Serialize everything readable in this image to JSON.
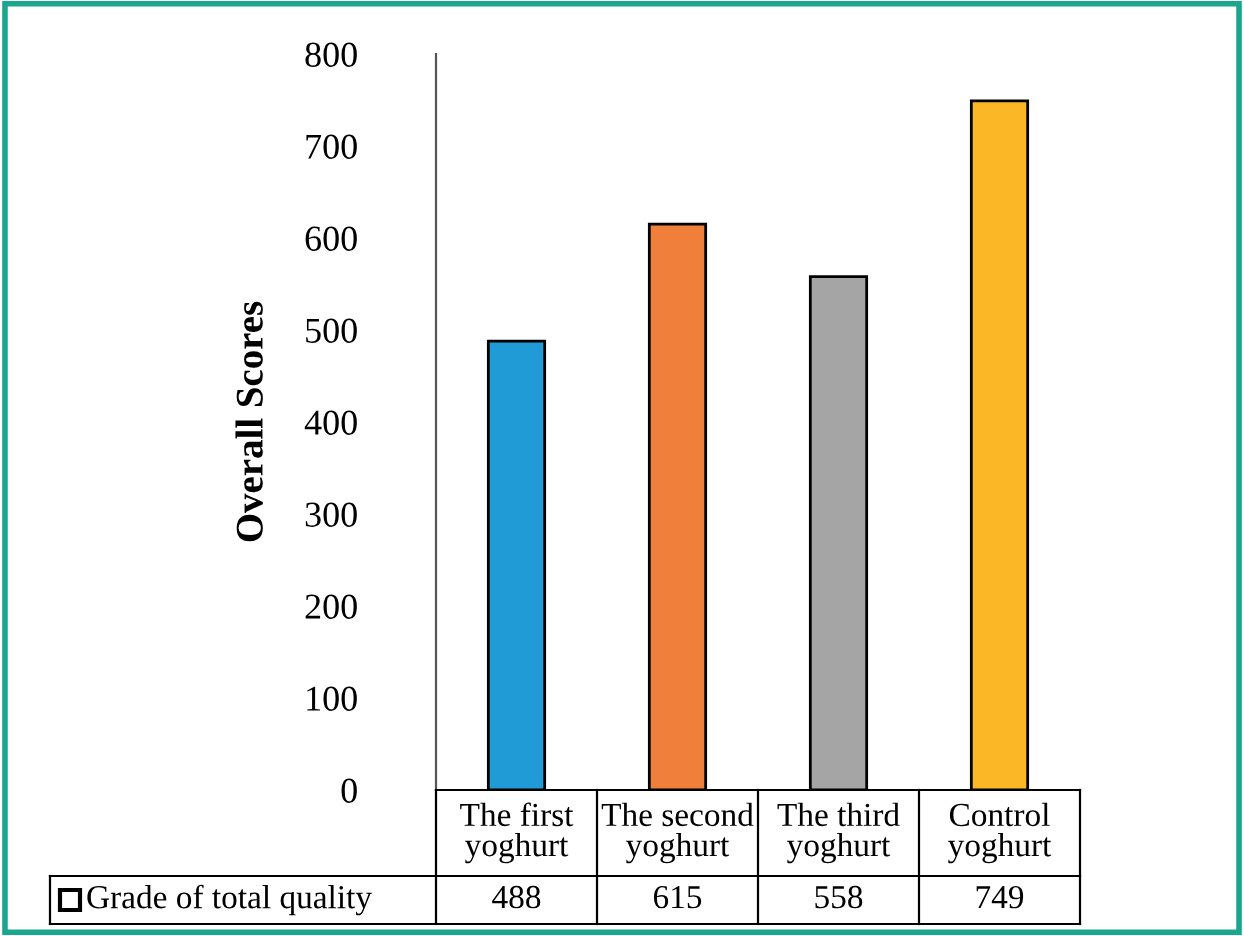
{
  "chart_data": {
    "type": "bar",
    "ylabel": "Overall Scores",
    "categories": [
      "The first\nyoghurt",
      "The second\nyoghurt",
      "The third\nyoghurt",
      "Control\nyoghurt"
    ],
    "series": [
      {
        "name": "Grade of total quality",
        "values": [
          488,
          615,
          558,
          749
        ],
        "colors": [
          "#219bd6",
          "#f07f3c",
          "#a5a5a5",
          "#fbb726"
        ]
      }
    ],
    "ylim": [
      0,
      800
    ],
    "yticks": [
      0,
      100,
      200,
      300,
      400,
      500,
      600,
      700,
      800
    ],
    "data_labels": true,
    "grid": false,
    "legend": "bottom"
  }
}
